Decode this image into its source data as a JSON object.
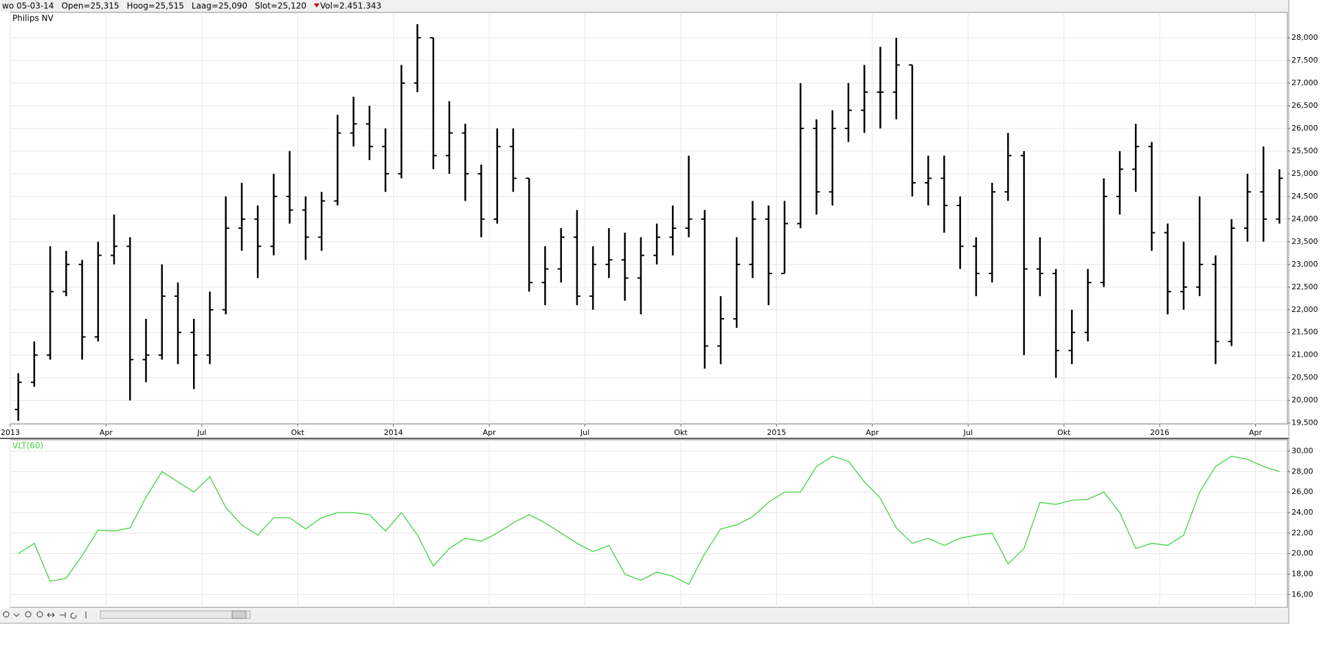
{
  "header": {
    "items": [
      "wo 05-03-14",
      "Open=25,315",
      "Hoog=25,515",
      "Laag=25,090",
      "Slot=25,120",
      "Vol=2.451.343"
    ]
  },
  "chart_data": [
    {
      "type": "ohlc",
      "title": "Philips NV",
      "categories": [
        "2013",
        null,
        null,
        null,
        null,
        null,
        "Apr",
        null,
        null,
        null,
        null,
        null,
        "Jul",
        null,
        null,
        null,
        null,
        null,
        "Okt",
        null,
        null,
        null,
        null,
        null,
        "2014",
        null,
        null,
        null,
        null,
        null,
        "Apr",
        null,
        null,
        null,
        null,
        null,
        "Jul",
        null,
        null,
        null,
        null,
        null,
        "Okt",
        null,
        null,
        null,
        null,
        null,
        "2015",
        null,
        null,
        null,
        null,
        null,
        "Apr",
        null,
        null,
        null,
        null,
        null,
        "Jul",
        null,
        null,
        null,
        null,
        null,
        "Okt",
        null,
        null,
        null,
        null,
        null,
        "2016",
        null,
        null,
        null,
        null,
        null,
        "Apr",
        null
      ],
      "open": [
        19.8,
        20.4,
        21.0,
        22.4,
        23.0,
        21.4,
        23.2,
        23.4,
        20.9,
        21.0,
        22.3,
        21.5,
        21.0,
        22.0,
        23.8,
        24.0,
        23.4,
        24.5,
        24.2,
        23.6,
        24.4,
        25.9,
        26.1,
        25.6,
        25.0,
        27.0,
        28.0,
        25.4,
        25.9,
        25.0,
        24.0,
        25.6,
        24.9,
        22.6,
        22.9,
        23.6,
        22.3,
        23.0,
        23.1,
        22.7,
        23.2,
        23.6,
        23.8,
        24.0,
        21.2,
        21.8,
        23.0,
        24.0,
        22.8,
        23.9,
        26.0,
        24.6,
        26.0,
        26.4,
        26.8,
        26.8,
        27.4,
        24.8,
        24.9,
        24.3,
        23.4,
        22.8,
        24.6,
        25.4,
        22.9,
        22.8,
        21.1,
        21.5,
        22.6,
        24.5,
        25.1,
        25.6,
        23.7,
        22.4,
        22.5,
        23.0,
        21.3,
        23.8,
        24.6,
        24.0
      ],
      "high": [
        20.6,
        21.3,
        23.4,
        23.3,
        23.1,
        23.5,
        24.1,
        23.6,
        21.8,
        23.0,
        22.6,
        21.8,
        22.4,
        24.5,
        24.8,
        24.3,
        25.0,
        25.5,
        24.5,
        24.6,
        26.3,
        26.7,
        26.5,
        26.0,
        27.4,
        28.3,
        28.0,
        26.6,
        26.1,
        25.2,
        26.0,
        26.0,
        24.9,
        23.4,
        23.8,
        24.2,
        23.4,
        23.8,
        23.7,
        23.6,
        23.9,
        24.3,
        25.4,
        24.2,
        22.3,
        23.6,
        24.4,
        24.3,
        24.4,
        27.0,
        26.2,
        26.4,
        27.0,
        27.4,
        27.8,
        28.0,
        27.4,
        25.4,
        25.4,
        24.5,
        23.6,
        24.8,
        25.9,
        25.5,
        23.6,
        22.9,
        22.0,
        22.9,
        24.9,
        25.5,
        26.1,
        25.7,
        23.9,
        23.5,
        24.5,
        23.2,
        24.0,
        25.0,
        25.6,
        25.1
      ],
      "low": [
        19.55,
        20.3,
        20.9,
        22.3,
        20.9,
        21.3,
        23.0,
        20.0,
        20.4,
        20.9,
        20.8,
        20.25,
        20.8,
        21.9,
        23.3,
        22.7,
        23.2,
        23.9,
        23.1,
        23.3,
        24.3,
        25.6,
        25.3,
        24.6,
        24.9,
        26.8,
        25.1,
        25.0,
        24.4,
        23.6,
        23.9,
        24.6,
        22.4,
        22.1,
        22.6,
        22.1,
        22.0,
        22.7,
        22.2,
        21.9,
        23.0,
        23.2,
        23.6,
        20.7,
        20.8,
        21.6,
        22.7,
        22.1,
        22.8,
        23.8,
        24.1,
        24.3,
        25.7,
        25.9,
        26.0,
        26.2,
        24.5,
        24.3,
        23.7,
        22.9,
        22.3,
        22.6,
        24.4,
        21.0,
        22.3,
        20.5,
        20.8,
        21.3,
        22.5,
        24.1,
        24.6,
        23.3,
        21.9,
        22.0,
        22.3,
        20.8,
        21.2,
        23.5,
        23.5,
        23.9
      ],
      "close": [
        20.4,
        21.0,
        22.4,
        23.0,
        21.4,
        23.2,
        23.4,
        20.9,
        21.0,
        22.3,
        21.5,
        21.0,
        22.0,
        23.8,
        24.0,
        23.4,
        24.5,
        24.2,
        23.6,
        24.4,
        25.9,
        26.1,
        25.6,
        25.0,
        27.0,
        28.0,
        25.4,
        25.9,
        25.0,
        24.0,
        25.6,
        24.9,
        22.6,
        22.9,
        23.6,
        22.3,
        23.0,
        23.1,
        22.7,
        23.2,
        23.6,
        23.8,
        24.0,
        21.2,
        21.8,
        23.0,
        24.0,
        22.8,
        23.9,
        26.0,
        24.6,
        26.0,
        26.4,
        26.8,
        26.8,
        27.4,
        24.8,
        24.9,
        24.3,
        23.4,
        22.8,
        24.6,
        25.4,
        22.9,
        22.8,
        21.1,
        21.5,
        22.6,
        24.5,
        25.1,
        25.6,
        23.7,
        22.4,
        22.5,
        23.0,
        21.3,
        23.8,
        24.6,
        24.0,
        24.9
      ],
      "color": "#000000",
      "ylim": [
        19.48,
        28.56
      ],
      "yticks": [
        {
          "value": 19.5,
          "label": "19,500"
        },
        {
          "value": 20,
          "label": "20,000"
        },
        {
          "value": 20.5,
          "label": "20,500"
        },
        {
          "value": 21,
          "label": "21,000"
        },
        {
          "value": 21.5,
          "label": "21,500"
        },
        {
          "value": 22,
          "label": "22,000"
        },
        {
          "value": 22.5,
          "label": "22,500"
        },
        {
          "value": 23,
          "label": "23,000"
        },
        {
          "value": 23.5,
          "label": "23,500"
        },
        {
          "value": 24,
          "label": "24,000"
        },
        {
          "value": 24.5,
          "label": "24,500"
        },
        {
          "value": 25,
          "label": "25,000"
        },
        {
          "value": 25.5,
          "label": "25,500"
        },
        {
          "value": 26,
          "label": "26,000"
        },
        {
          "value": 26.5,
          "label": "26,500"
        },
        {
          "value": 27,
          "label": "27,000"
        },
        {
          "value": 27.5,
          "label": "27,500"
        },
        {
          "value": 28,
          "label": "28,000"
        }
      ],
      "grid": true
    },
    {
      "type": "line",
      "title": "VLT(60)",
      "values": [
        20.0,
        21.0,
        17.3,
        17.6,
        19.8,
        22.3,
        22.2,
        22.5,
        25.5,
        28.0,
        27.0,
        26.0,
        27.5,
        24.5,
        22.8,
        21.8,
        23.5,
        23.5,
        22.4,
        23.5,
        24.0,
        24.0,
        23.8,
        22.2,
        24.0,
        21.8,
        18.8,
        20.5,
        21.5,
        21.2,
        22.0,
        23.0,
        23.8,
        23.0,
        22.0,
        21.0,
        20.2,
        20.8,
        18.0,
        17.4,
        18.2,
        17.8,
        17.0,
        20.0,
        22.4,
        22.8,
        23.6,
        25.0,
        26.0,
        26.0,
        28.5,
        29.5,
        29.0,
        27.0,
        25.4,
        22.5,
        21.0,
        21.5,
        20.8,
        21.5,
        21.8,
        22.0,
        19.0,
        20.5,
        25.0,
        24.8,
        25.2,
        25.3,
        26.0,
        24.0,
        20.5,
        21.0,
        20.8,
        21.8,
        26.0,
        28.5,
        29.5,
        29.2,
        28.5,
        28.0
      ],
      "color": "#3fd23f",
      "ylim": [
        14.75,
        31.1
      ],
      "yticks": [
        {
          "value": 16,
          "label": "16,00"
        },
        {
          "value": 18,
          "label": "18,00"
        },
        {
          "value": 20,
          "label": "20,00"
        },
        {
          "value": 22,
          "label": "22,00"
        },
        {
          "value": 24,
          "label": "24,00"
        },
        {
          "value": 26,
          "label": "26,00"
        },
        {
          "value": 28,
          "label": "28,00"
        },
        {
          "value": 30,
          "label": "30,00"
        }
      ],
      "grid": true
    }
  ]
}
